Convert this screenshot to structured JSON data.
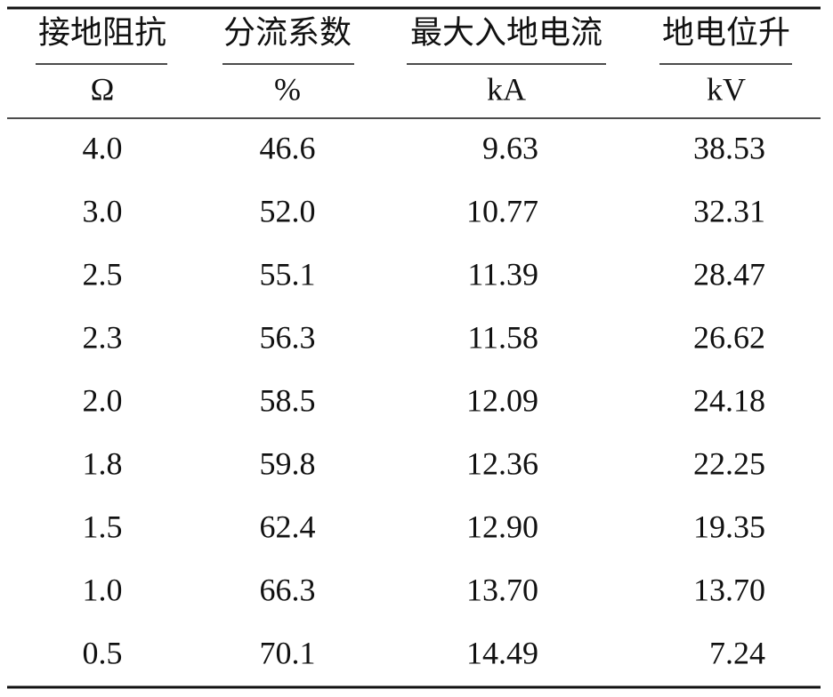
{
  "table": {
    "headers": [
      "接地阻抗",
      "分流系数",
      "最大入地电流",
      "地电位升"
    ],
    "units": [
      "Ω",
      "%",
      "kA",
      "kV"
    ],
    "rows": [
      [
        "4.0",
        "46.6",
        "9.63",
        "38.53"
      ],
      [
        "3.0",
        "52.0",
        "10.77",
        "32.31"
      ],
      [
        "2.5",
        "55.1",
        "11.39",
        "28.47"
      ],
      [
        "2.3",
        "56.3",
        "11.58",
        "26.62"
      ],
      [
        "2.0",
        "58.5",
        "12.09",
        "24.18"
      ],
      [
        "1.8",
        "59.8",
        "12.36",
        "22.25"
      ],
      [
        "1.5",
        "62.4",
        "12.90",
        "19.35"
      ],
      [
        "1.0",
        "66.3",
        "13.70",
        "13.70"
      ],
      [
        "0.5",
        "70.1",
        "14.49",
        "7.24"
      ]
    ]
  }
}
